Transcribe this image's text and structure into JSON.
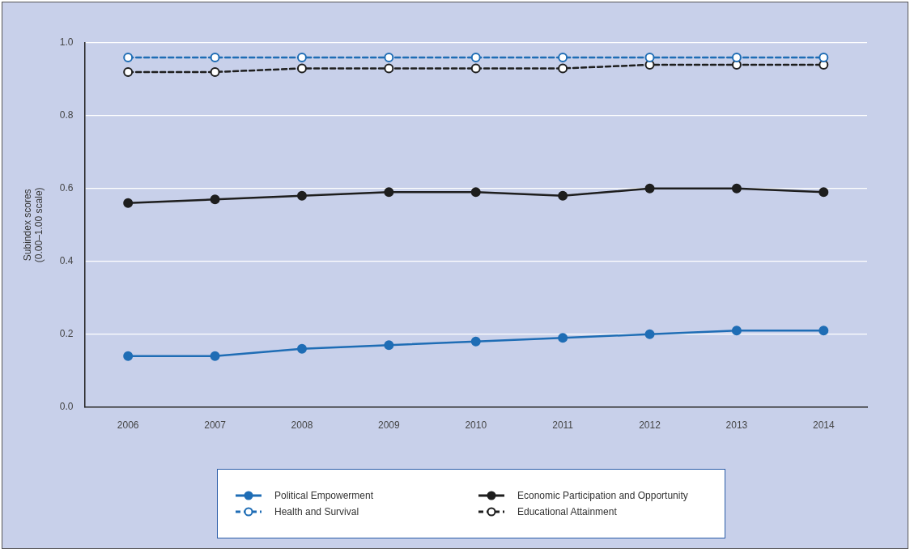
{
  "chart_data": {
    "type": "line",
    "ylabel": "Subindex scores (0.00–1.00 scale)",
    "categories": [
      "2006",
      "2007",
      "2008",
      "2009",
      "2010",
      "2011",
      "2012",
      "2013",
      "2014"
    ],
    "series": [
      {
        "name": "Political Empowerment",
        "color": "#1f6db5",
        "line_style": "solid",
        "values": [
          0.14,
          0.14,
          0.16,
          0.17,
          0.18,
          0.19,
          0.2,
          0.21,
          0.21
        ]
      },
      {
        "name": "Economic Participation and Opportunity",
        "color": "#1e1e1e",
        "line_style": "solid",
        "values": [
          0.56,
          0.57,
          0.58,
          0.59,
          0.59,
          0.58,
          0.6,
          0.6,
          0.59
        ]
      },
      {
        "name": "Health and Survival",
        "color": "#1f6db5",
        "line_style": "dashed",
        "values": [
          0.96,
          0.96,
          0.96,
          0.96,
          0.96,
          0.96,
          0.96,
          0.96,
          0.96
        ]
      },
      {
        "name": "Educational Attainment",
        "color": "#1e1e1e",
        "line_style": "dashed",
        "values": [
          0.92,
          0.92,
          0.93,
          0.93,
          0.93,
          0.93,
          0.94,
          0.94,
          0.94
        ]
      }
    ],
    "ylim": [
      0,
      1.0
    ],
    "yticks": [
      {
        "value": 0,
        "label": "0.0"
      },
      {
        "value": 0.2,
        "label": "0.2"
      },
      {
        "value": 0.4,
        "label": "0.4"
      },
      {
        "value": 0.6,
        "label": "0.6"
      },
      {
        "value": 0.8,
        "label": "0.8"
      },
      {
        "value": 1.0,
        "label": "1.0"
      }
    ],
    "grid": "y",
    "legend": "bottom",
    "marker": "circle"
  }
}
